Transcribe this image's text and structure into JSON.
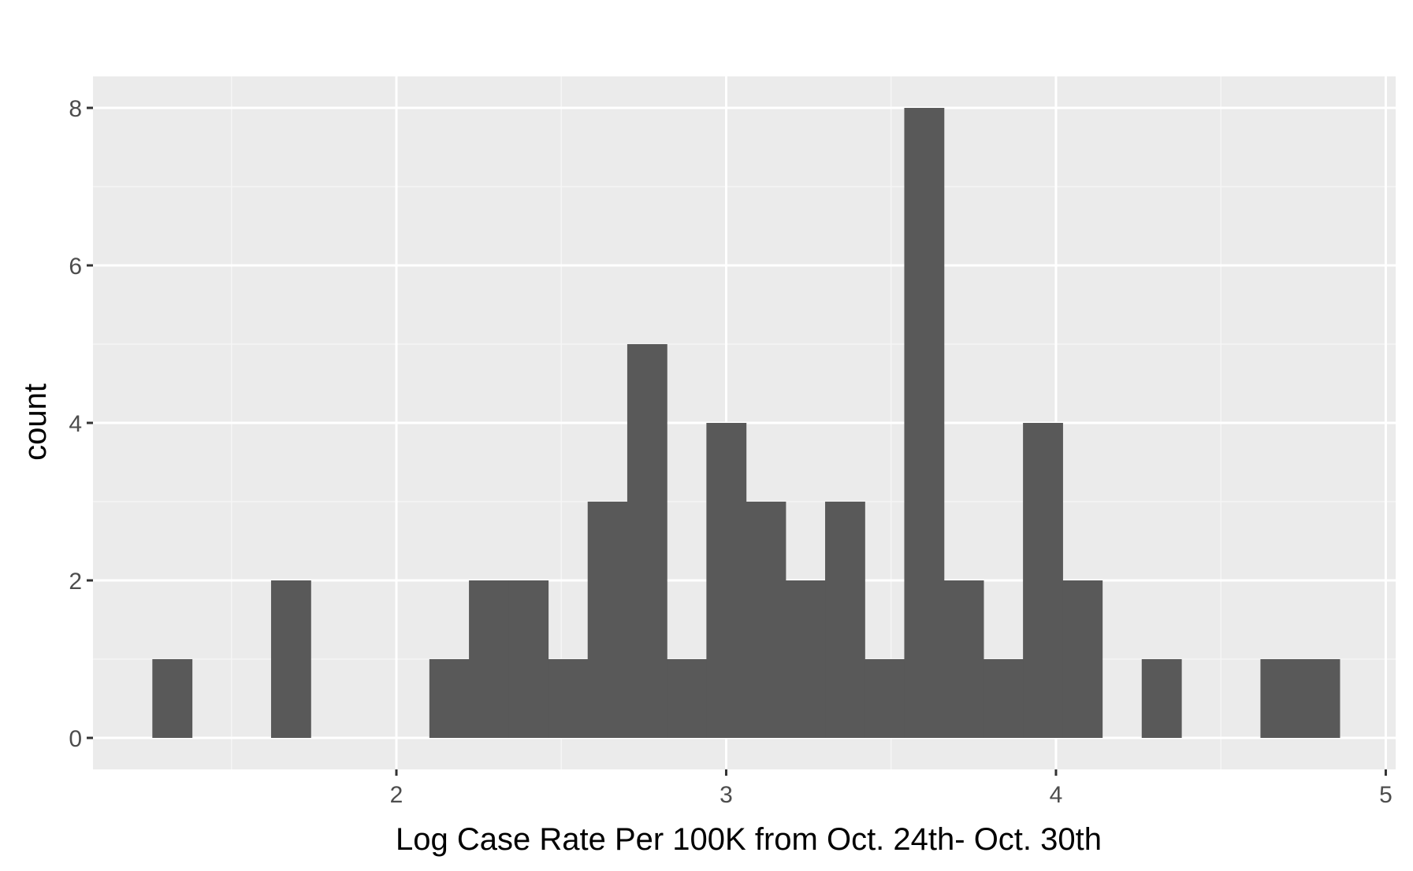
{
  "chart_data": {
    "type": "bar",
    "subtype": "histogram",
    "xlabel": "Log Case Rate Per 100K from Oct. 24th- Oct. 30th",
    "ylabel": "count",
    "xlim": [
      1.08,
      5.03
    ],
    "ylim": [
      -0.4,
      8.4
    ],
    "xticks": [
      2,
      3,
      4,
      5
    ],
    "xtick_labels": [
      "2",
      "3",
      "4",
      "5"
    ],
    "yticks": [
      0,
      2,
      4,
      6,
      8
    ],
    "ytick_labels": [
      "0",
      "2",
      "4",
      "6",
      "8"
    ],
    "grid": true,
    "bin_width": 0.12,
    "bins": [
      {
        "x0": 1.26,
        "x1": 1.38,
        "count": 1
      },
      {
        "x0": 1.38,
        "x1": 1.5,
        "count": 0
      },
      {
        "x0": 1.5,
        "x1": 1.62,
        "count": 0
      },
      {
        "x0": 1.62,
        "x1": 1.74,
        "count": 2
      },
      {
        "x0": 1.74,
        "x1": 1.86,
        "count": 0
      },
      {
        "x0": 1.86,
        "x1": 1.98,
        "count": 0
      },
      {
        "x0": 1.98,
        "x1": 2.1,
        "count": 0
      },
      {
        "x0": 2.1,
        "x1": 2.22,
        "count": 1
      },
      {
        "x0": 2.22,
        "x1": 2.34,
        "count": 2
      },
      {
        "x0": 2.34,
        "x1": 2.46,
        "count": 2
      },
      {
        "x0": 2.46,
        "x1": 2.58,
        "count": 1
      },
      {
        "x0": 2.58,
        "x1": 2.7,
        "count": 3
      },
      {
        "x0": 2.7,
        "x1": 2.82,
        "count": 5
      },
      {
        "x0": 2.82,
        "x1": 2.94,
        "count": 1
      },
      {
        "x0": 2.94,
        "x1": 3.06,
        "count": 4
      },
      {
        "x0": 3.06,
        "x1": 3.18,
        "count": 3
      },
      {
        "x0": 3.18,
        "x1": 3.3,
        "count": 2
      },
      {
        "x0": 3.3,
        "x1": 3.42,
        "count": 3
      },
      {
        "x0": 3.42,
        "x1": 3.54,
        "count": 1
      },
      {
        "x0": 3.54,
        "x1": 3.66,
        "count": 8
      },
      {
        "x0": 3.66,
        "x1": 3.78,
        "count": 2
      },
      {
        "x0": 3.78,
        "x1": 3.9,
        "count": 1
      },
      {
        "x0": 3.9,
        "x1": 4.02,
        "count": 4
      },
      {
        "x0": 4.02,
        "x1": 4.14,
        "count": 2
      },
      {
        "x0": 4.14,
        "x1": 4.26,
        "count": 0
      },
      {
        "x0": 4.26,
        "x1": 4.38,
        "count": 1
      },
      {
        "x0": 4.38,
        "x1": 4.5,
        "count": 0
      },
      {
        "x0": 4.5,
        "x1": 4.62,
        "count": 0
      },
      {
        "x0": 4.62,
        "x1": 4.74,
        "count": 1
      },
      {
        "x0": 4.74,
        "x1": 4.86,
        "count": 1
      }
    ],
    "colors": {
      "panel_background": "#ebebeb",
      "grid_major": "#ffffff",
      "grid_minor": "#f5f5f5",
      "bar_fill": "#595959",
      "tick_mark": "#333333"
    }
  }
}
